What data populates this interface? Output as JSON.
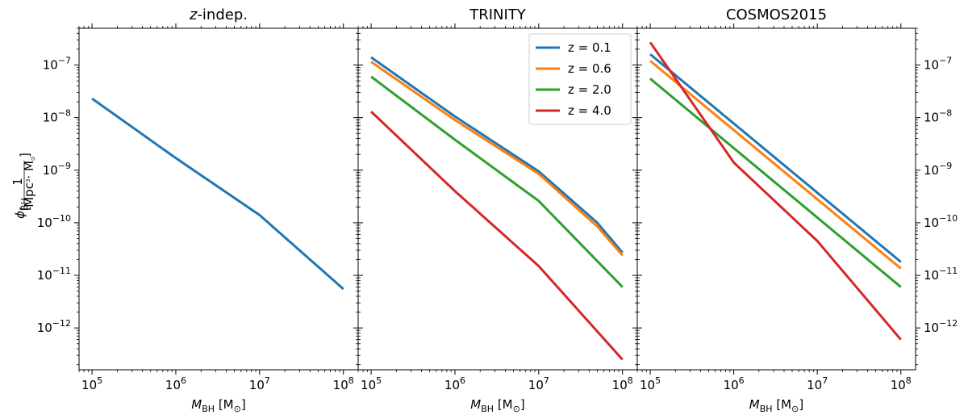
{
  "chart_data": {
    "type": "line",
    "x_scale": "log",
    "y_scale": "log",
    "xlim": [
      70000,
      150000000
    ],
    "ylim": [
      1.6e-13,
      5e-07
    ],
    "shared_ylabel": "φ_BH [1/(Mpc³·M☉)]",
    "ylabel_parts": {
      "symbol": "ϕ",
      "subscript": "BH",
      "numerator": "1",
      "denominator_unit": "Mpc",
      "denominator_power": "3",
      "denominator_rest": "· M",
      "denominator_sub": "⊙"
    },
    "xlabel_parts": {
      "symbol": "M",
      "subscript": "BH",
      "unit": "[M",
      "unit_sub": "⊙",
      "unit_close": "]"
    },
    "x_ticks": [
      {
        "base": "10",
        "exp": "5",
        "value": 100000
      },
      {
        "base": "10",
        "exp": "6",
        "value": 1000000
      },
      {
        "base": "10",
        "exp": "7",
        "value": 10000000
      },
      {
        "base": "10",
        "exp": "8",
        "value": 100000000
      }
    ],
    "y_ticks": [
      {
        "base": "10",
        "exp": "−7",
        "value": 1e-07
      },
      {
        "base": "10",
        "exp": "−8",
        "value": 1e-08
      },
      {
        "base": "10",
        "exp": "−9",
        "value": 1e-09
      },
      {
        "base": "10",
        "exp": "−10",
        "value": 1e-10
      },
      {
        "base": "10",
        "exp": "−11",
        "value": 1e-11
      },
      {
        "base": "10",
        "exp": "−12",
        "value": 1e-12
      }
    ],
    "colors": {
      "z0.1": "#1f77b4",
      "z0.6": "#ff7f0e",
      "z2.0": "#2ca02c",
      "z4.0": "#d62728"
    },
    "legend": [
      {
        "label": "z = 0.1",
        "color": "#1f77b4"
      },
      {
        "label": "z = 0.6",
        "color": "#ff7f0e"
      },
      {
        "label": "z = 2.0",
        "color": "#2ca02c"
      },
      {
        "label": "z = 4.0",
        "color": "#d62728"
      }
    ],
    "panels": [
      {
        "title_italic": "z",
        "title_rest": "-indep.",
        "series": [
          {
            "name": "z-indep.",
            "color": "#1f77b4",
            "x": [
              100000,
              1000000,
              10000000,
              100000000
            ],
            "y": [
              2.3e-08,
              1.7e-09,
              1.4e-10,
              5.5e-12
            ]
          }
        ]
      },
      {
        "title_italic": "",
        "title_rest": "TRINITY",
        "series": [
          {
            "name": "z = 0.1",
            "color": "#1f77b4",
            "x": [
              100000,
              1000000,
              10000000,
              50000000,
              100000000
            ],
            "y": [
              1.4e-07,
              1.05e-08,
              9.5e-10,
              1e-10,
              2.7e-11
            ]
          },
          {
            "name": "z = 0.6",
            "color": "#ff7f0e",
            "x": [
              100000,
              1000000,
              10000000,
              50000000,
              100000000
            ],
            "y": [
              1.15e-07,
              9e-09,
              8.5e-10,
              8.5e-11,
              2.4e-11
            ]
          },
          {
            "name": "z = 2.0",
            "color": "#2ca02c",
            "x": [
              100000,
              1000000,
              10000000,
              100000000
            ],
            "y": [
              6e-08,
              3.8e-09,
              2.6e-10,
              6e-12
            ]
          },
          {
            "name": "z = 4.0",
            "color": "#d62728",
            "x": [
              100000,
              1000000,
              10000000,
              100000000
            ],
            "y": [
              1.3e-08,
              4e-10,
              1.5e-11,
              2.5e-13
            ]
          }
        ]
      },
      {
        "title_italic": "",
        "title_rest": "COSMOS2015",
        "series": [
          {
            "name": "z = 0.1",
            "color": "#1f77b4",
            "x": [
              100000,
              100000000
            ],
            "y": [
              1.6e-07,
              1.8e-11
            ]
          },
          {
            "name": "z = 0.6",
            "color": "#ff7f0e",
            "x": [
              100000,
              100000000
            ],
            "y": [
              1.2e-07,
              1.35e-11
            ]
          },
          {
            "name": "z = 2.0",
            "color": "#2ca02c",
            "x": [
              100000,
              100000000
            ],
            "y": [
              5.5e-08,
              6e-12
            ]
          },
          {
            "name": "z = 4.0",
            "color": "#d62728",
            "x": [
              100000,
              1000000,
              10000000,
              100000000
            ],
            "y": [
              2.7e-07,
              1.4e-09,
              4.5e-11,
              6e-13
            ]
          }
        ]
      }
    ]
  }
}
